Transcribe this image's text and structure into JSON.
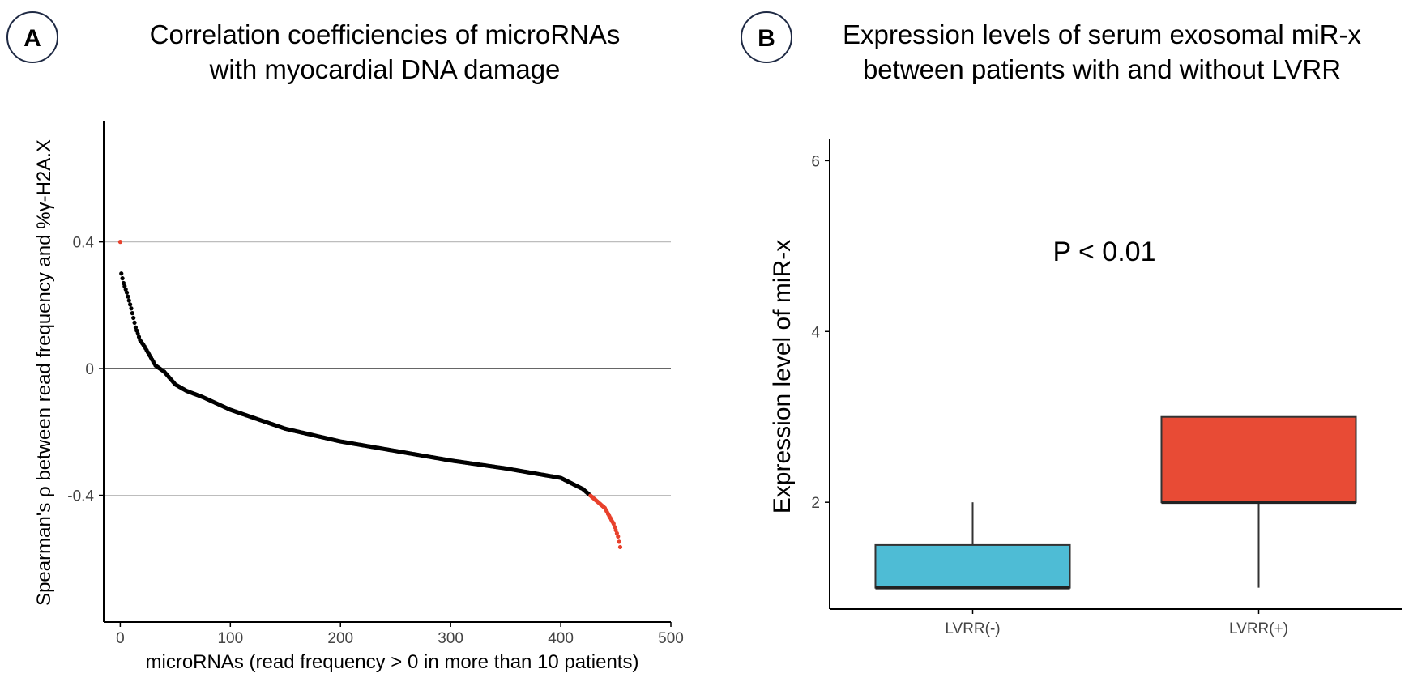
{
  "panels": {
    "a": {
      "badge": "A"
    },
    "b": {
      "badge": "B"
    }
  },
  "chart_data": [
    {
      "type": "scatter",
      "panel": "A",
      "title_lines": [
        "Correlation coefficiencies of microRNAs",
        "with myocardial DNA damage"
      ],
      "xlabel": "microRNAs (read frequency > 0 in more than 10 patients)",
      "ylabel": "Spearman's ρ between read frequency and %γ-H2A.X",
      "xlim": [
        -15,
        500
      ],
      "ylim": [
        -0.8,
        0.78
      ],
      "x_ticks": [
        {
          "value": 0,
          "label": "0"
        },
        {
          "value": 100,
          "label": "100"
        },
        {
          "value": 200,
          "label": "200"
        },
        {
          "value": 300,
          "label": "300"
        },
        {
          "value": 400,
          "label": "400"
        },
        {
          "value": 500,
          "label": "500"
        }
      ],
      "y_ticks": [
        {
          "value": 0.4,
          "label": "0.4"
        },
        {
          "value": 0,
          "label": "0"
        },
        {
          "value": -0.4,
          "label": "-0.4"
        }
      ],
      "reference_lines": [
        0.4,
        0,
        -0.4
      ],
      "n_points": 455,
      "curve_knots": [
        [
          0,
          0.4
        ],
        [
          1,
          0.3
        ],
        [
          3,
          0.27
        ],
        [
          6,
          0.24
        ],
        [
          10,
          0.19
        ],
        [
          14,
          0.13
        ],
        [
          18,
          0.09
        ],
        [
          22,
          0.07
        ],
        [
          27,
          0.04
        ],
        [
          32,
          0.01
        ],
        [
          40,
          -0.01
        ],
        [
          50,
          -0.05
        ],
        [
          60,
          -0.07
        ],
        [
          75,
          -0.09
        ],
        [
          100,
          -0.13
        ],
        [
          150,
          -0.19
        ],
        [
          200,
          -0.23
        ],
        [
          250,
          -0.26
        ],
        [
          300,
          -0.29
        ],
        [
          350,
          -0.315
        ],
        [
          400,
          -0.345
        ],
        [
          420,
          -0.38
        ],
        [
          430,
          -0.41
        ],
        [
          440,
          -0.44
        ],
        [
          448,
          -0.49
        ],
        [
          452,
          -0.53
        ],
        [
          455,
          -0.58
        ]
      ],
      "highlight_rule": "points with rho >= 0.4 or rho <= -0.4 shown in red",
      "colors": {
        "normal": "#000000",
        "highlight": "#e8412c",
        "grid": "#bdbdbd",
        "zero_line": "#333333"
      }
    },
    {
      "type": "box",
      "panel": "B",
      "title_lines": [
        "Expression levels of serum exosomal miR-x",
        "between patients with and without LVRR"
      ],
      "xlabel": "",
      "ylabel": "Expression level of miR-x",
      "ylim": [
        0.75,
        6.25
      ],
      "y_ticks": [
        {
          "value": 2,
          "label": "2"
        },
        {
          "value": 4,
          "label": "4"
        },
        {
          "value": 6,
          "label": "6"
        }
      ],
      "annotation": "P < 0.01",
      "groups": [
        {
          "name": "LVRR(-)",
          "min": 1.0,
          "q1": 1.0,
          "median": 1.0,
          "q3": 1.5,
          "max": 2.0,
          "color": "#4ebcd5"
        },
        {
          "name": "LVRR(+)",
          "min": 1.0,
          "q1": 2.0,
          "median": 2.0,
          "q3": 3.0,
          "max": 3.0,
          "color": "#e84b35"
        }
      ]
    }
  ]
}
